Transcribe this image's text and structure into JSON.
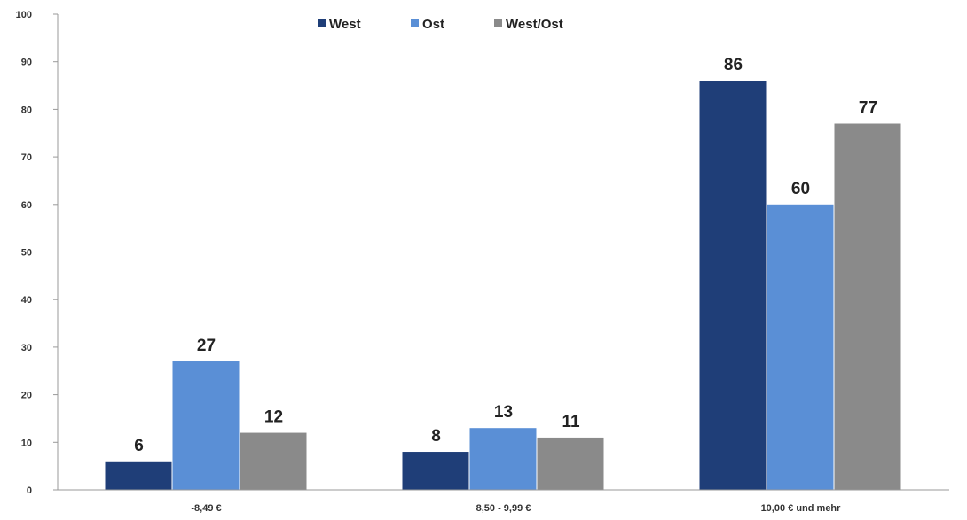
{
  "chart_data": {
    "type": "bar",
    "title": "",
    "xlabel": "",
    "ylabel": "",
    "ylim": [
      0,
      100
    ],
    "yticks": [
      0,
      10,
      20,
      30,
      40,
      50,
      60,
      70,
      80,
      90,
      100
    ],
    "grid": false,
    "legend_position": "top-center",
    "categories": [
      "-8,49 €",
      "8,50 - 9,99 €",
      "10,00 € und mehr"
    ],
    "series": [
      {
        "name": "West",
        "color": "#1f3e78",
        "values": [
          6,
          8,
          86
        ]
      },
      {
        "name": "Ost",
        "color": "#5a8fd6",
        "values": [
          27,
          13,
          60
        ]
      },
      {
        "name": "West/Ost",
        "color": "#8a8a8a",
        "values": [
          12,
          11,
          77
        ]
      }
    ]
  }
}
